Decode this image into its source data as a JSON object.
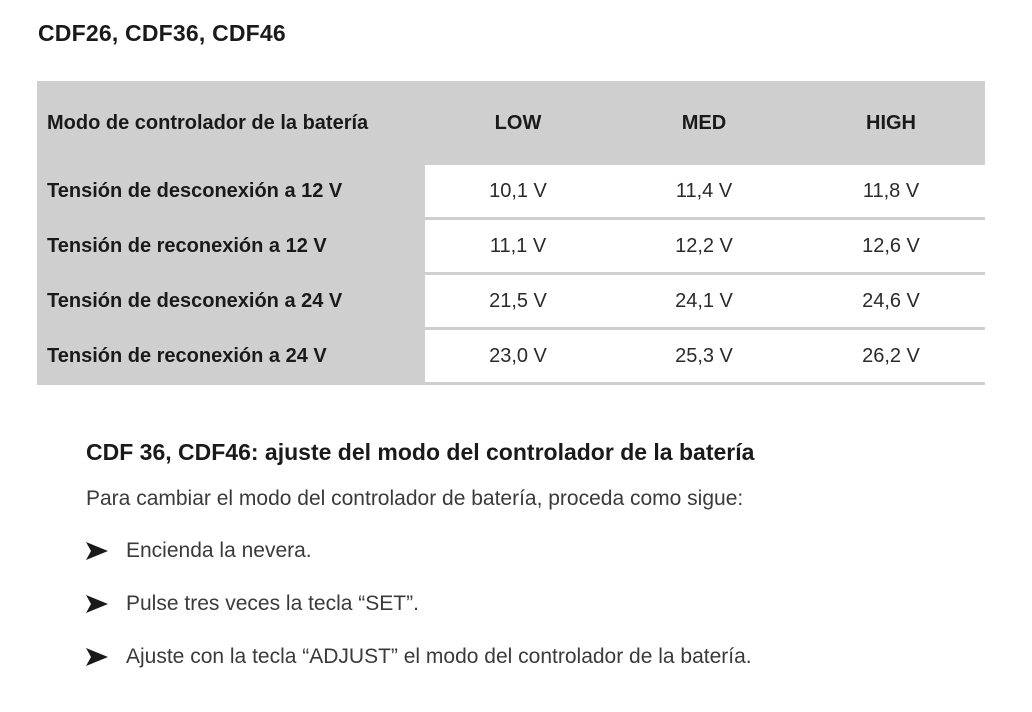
{
  "title": "CDF26, CDF36, CDF46",
  "table": {
    "header": [
      "Modo de controlador de la batería",
      "LOW",
      "MED",
      "HIGH"
    ],
    "rows": [
      {
        "label": "Tensión de desconexión a 12 V",
        "low": "10,1 V",
        "med": "11,4 V",
        "high": "11,8 V"
      },
      {
        "label": "Tensión de reconexión a 12 V",
        "low": "11,1 V",
        "med": "12,2 V",
        "high": "12,6 V"
      },
      {
        "label": "Tensión de desconexión a 24 V",
        "low": "21,5 V",
        "med": "24,1 V",
        "high": "24,6 V"
      },
      {
        "label": "Tensión de reconexión a 24 V",
        "low": "23,0 V",
        "med": "25,3 V",
        "high": "26,2 V"
      }
    ]
  },
  "section": {
    "heading": "CDF 36, CDF46: ajuste del modo del controlador de la batería",
    "intro": "Para cambiar el modo del controlador de batería, proceda como sigue:",
    "steps": [
      "Encienda la nevera.",
      "Pulse tres veces la tecla “SET”.",
      "Ajuste con la tecla “ADJUST” el modo del controlador de la batería."
    ]
  },
  "icons": {
    "step_marker": "arrow-right-icon"
  },
  "colors": {
    "header_bg": "#cfcfcf",
    "text": "#1a1a1a"
  }
}
